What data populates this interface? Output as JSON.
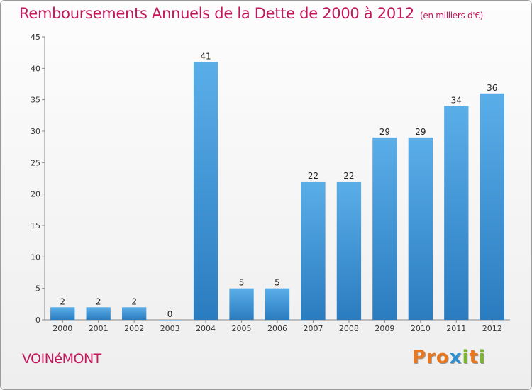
{
  "header": {
    "title": "Remboursements Annuels de la Dette de 2000 à 2012",
    "subtitle": "(en milliers d'€)"
  },
  "footer": {
    "town": "VOINéMONT",
    "logo_text": "Proxiti"
  },
  "colors": {
    "title": "#c2185b",
    "bar_top": "#5aaee8",
    "bar_bottom": "#2a7cc0",
    "logo_letters": [
      "#e8771e",
      "#e8771e",
      "#e8771e",
      "#2f8fd0",
      "#7ab52e",
      "#e8771e",
      "#7ab52e"
    ]
  },
  "chart_data": {
    "type": "bar",
    "categories": [
      "2000",
      "2001",
      "2002",
      "2003",
      "2004",
      "2005",
      "2006",
      "2007",
      "2008",
      "2009",
      "2010",
      "2011",
      "2012"
    ],
    "values": [
      2,
      2,
      2,
      0,
      41,
      5,
      5,
      22,
      22,
      29,
      29,
      34,
      36
    ],
    "ylim": [
      0,
      45
    ],
    "yticks": [
      0,
      5,
      10,
      15,
      20,
      25,
      30,
      35,
      40,
      45
    ],
    "grid": false,
    "legend": "none"
  }
}
